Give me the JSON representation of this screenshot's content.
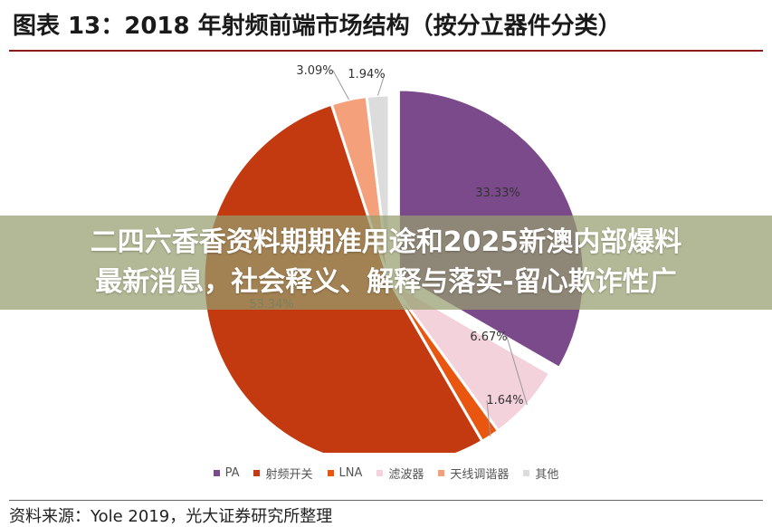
{
  "title": "图表 13：2018 年射频前端市场结构（按分立器件分类）",
  "overlay": {
    "line1": "二四六香香资料期期准用途和2025新澳内部爆料",
    "line2": "最新消息，社会释义、解释与落实-留心欺诈性广"
  },
  "source": "资料来源：Yole 2019，光大证券研究所整理",
  "chart_data": {
    "type": "pie",
    "categories": [
      "PA",
      "射频开关",
      "LNA",
      "滤波器",
      "天线调谐器",
      "其他"
    ],
    "values": [
      33.33,
      53.34,
      1.64,
      6.67,
      3.09,
      1.94
    ],
    "labels": [
      "33.33%",
      "53.34%",
      "1.64%",
      "6.67%",
      "3.09%",
      "1.94%"
    ],
    "colors": [
      "#7b4a8b",
      "#c33a10",
      "#e8560f",
      "#f3d2dc",
      "#f4a07a",
      "#dcdcdc"
    ],
    "legend_position": "bottom"
  }
}
